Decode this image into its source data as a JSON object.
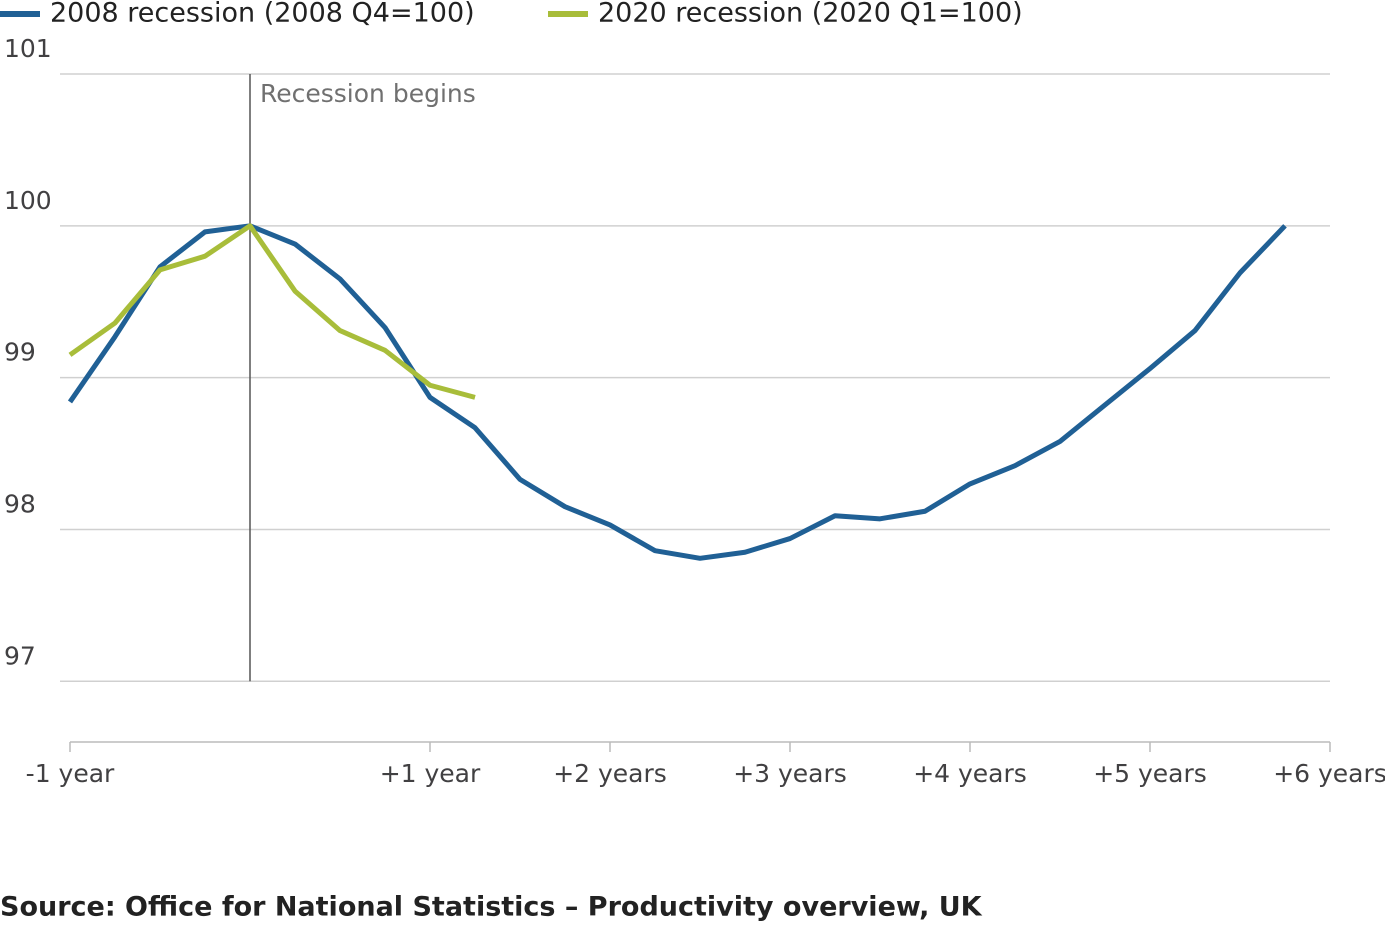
{
  "chart_data": {
    "type": "line",
    "annotation": "Recession begins",
    "vline": 0,
    "source": "Source: Office for National Statistics – Productivity overview, UK",
    "x": [
      -1,
      -0.75,
      -0.5,
      -0.25,
      0,
      0.25,
      0.5,
      0.75,
      1,
      1.25,
      1.5,
      1.75,
      2,
      2.25,
      2.5,
      2.75,
      3,
      3.25,
      3.5,
      3.75,
      4,
      4.25,
      4.5,
      4.75,
      5,
      5.25,
      5.5,
      5.75
    ],
    "series": [
      {
        "name": "2008 recession (2008 Q4=100)",
        "color": "#206095",
        "values": [
          98.84,
          99.27,
          99.73,
          99.96,
          100.0,
          99.88,
          99.65,
          99.33,
          98.87,
          98.67,
          98.33,
          98.15,
          98.03,
          97.86,
          97.81,
          97.85,
          97.94,
          98.09,
          98.07,
          98.12,
          98.3,
          98.42,
          98.58,
          98.82,
          99.06,
          99.31,
          99.69,
          100.0
        ]
      },
      {
        "name": "2020 recession (2020 Q1=100)",
        "color": "#a8bd3a",
        "values": [
          99.15,
          99.36,
          99.71,
          99.8,
          100.0,
          99.57,
          99.31,
          99.18,
          98.95,
          98.87,
          null,
          null,
          null,
          null,
          null,
          null,
          null,
          null,
          null,
          null,
          null,
          null,
          null,
          null,
          null,
          null,
          null,
          null
        ]
      }
    ],
    "xlim": [
      -1,
      6
    ],
    "xticks": [
      {
        "value": -1,
        "label": "-1 year"
      },
      {
        "value": 1,
        "label": "+1 year"
      },
      {
        "value": 2,
        "label": "+2 years"
      },
      {
        "value": 3,
        "label": "+3 years"
      },
      {
        "value": 4,
        "label": "+4 years"
      },
      {
        "value": 5,
        "label": "+5 years"
      },
      {
        "value": 6,
        "label": "+6 years"
      }
    ],
    "ylim": [
      96.6,
      101
    ],
    "yticks": [
      97,
      98,
      99,
      100,
      101
    ],
    "grid": true
  }
}
